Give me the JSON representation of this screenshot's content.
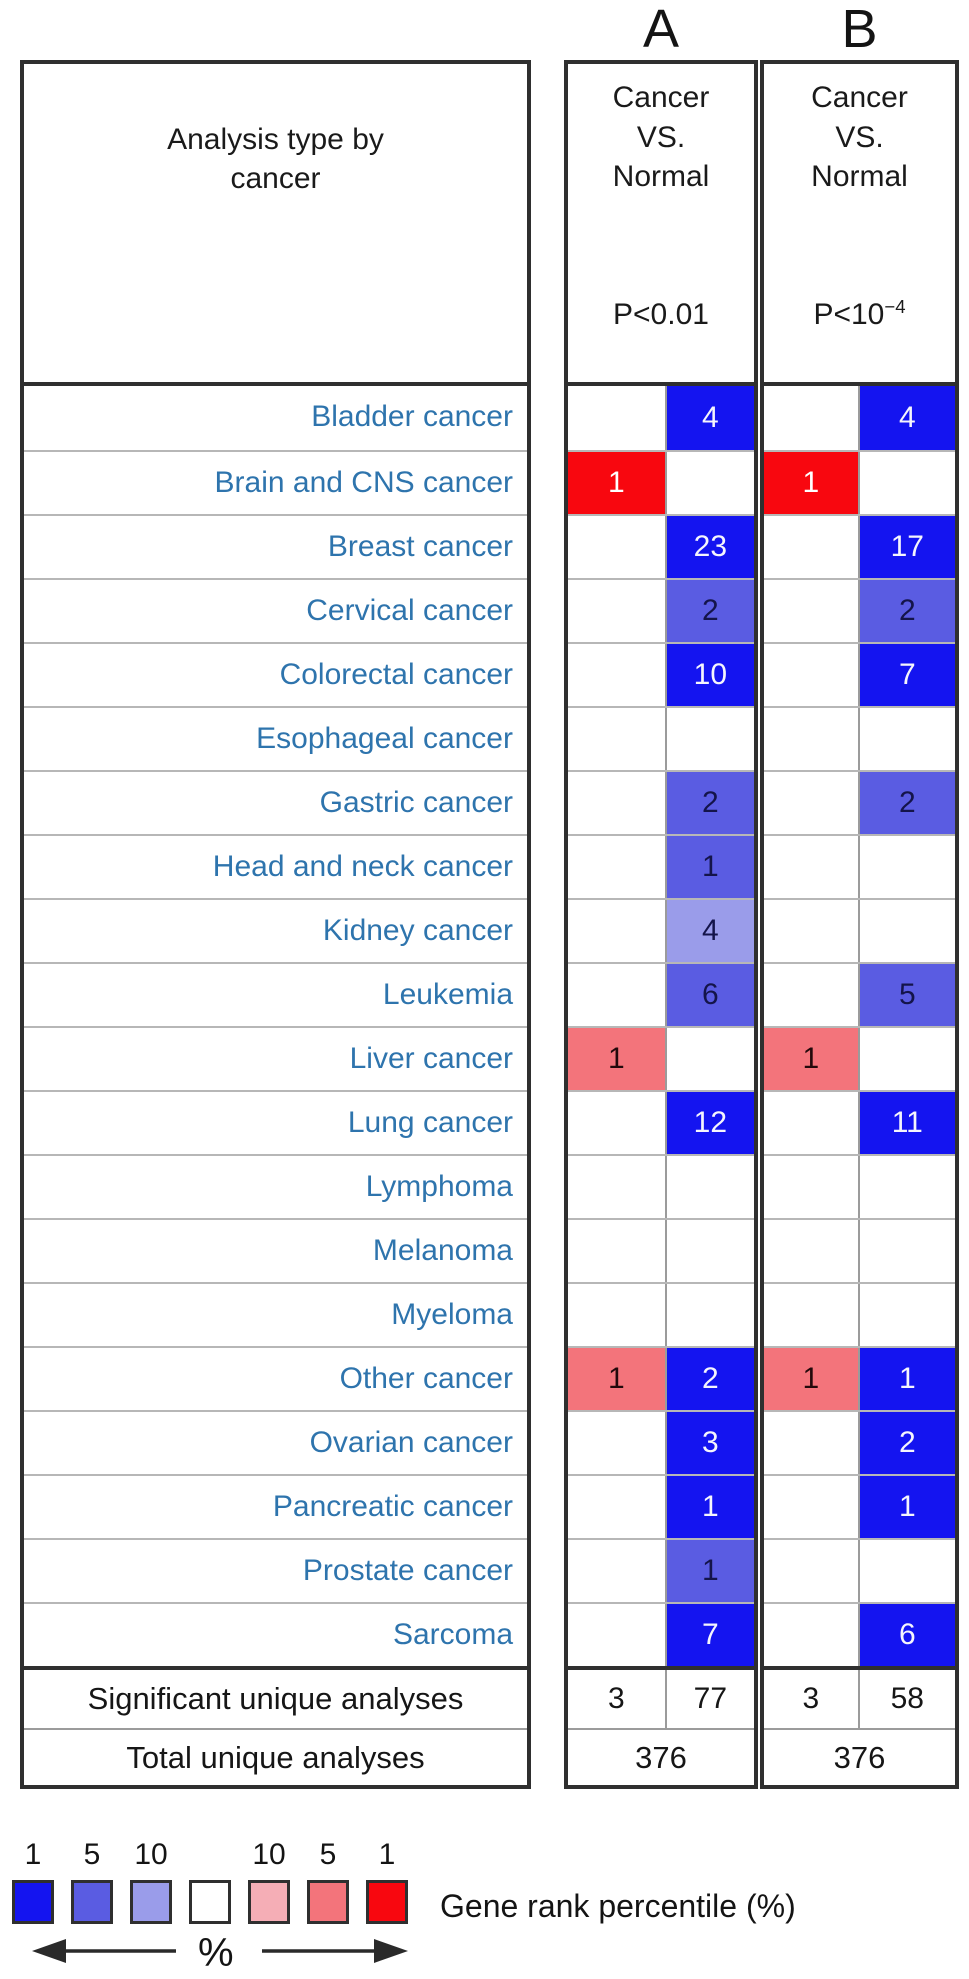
{
  "figure": {
    "panel_a_letter": "A",
    "panel_b_letter": "B",
    "left_header": "Analysis type by\ncancer",
    "a_header": "Cancer\nVS.\nNormal",
    "b_header": "Cancer\nVS.\nNormal",
    "a_pvalue": "P<0.01",
    "b_pvalue_base": "P<10",
    "b_pvalue_sup": "−4"
  },
  "chart_data": {
    "type": "heatmap",
    "title": "Analysis type by cancer",
    "columns": [
      {
        "id": "A",
        "comparison": "Cancer VS. Normal",
        "threshold": "P<0.01"
      },
      {
        "id": "B",
        "comparison": "Cancer VS. Normal",
        "threshold": "P<10^−4"
      }
    ],
    "cell_semantics": "down = red (left sub-column), up = blue (right sub-column); value = number of analyses; percentile_bin = gene rank percentile bucket (1, 5 or 10)",
    "rows": [
      {
        "label": "Bladder cancer",
        "a": {
          "down": null,
          "up": {
            "value": 4,
            "percentile_bin": 1
          }
        },
        "b": {
          "down": null,
          "up": {
            "value": 4,
            "percentile_bin": 1
          }
        }
      },
      {
        "label": "Brain and CNS cancer",
        "a": {
          "down": {
            "value": 1,
            "percentile_bin": 1
          },
          "up": null
        },
        "b": {
          "down": {
            "value": 1,
            "percentile_bin": 1
          },
          "up": null
        }
      },
      {
        "label": "Breast cancer",
        "a": {
          "down": null,
          "up": {
            "value": 23,
            "percentile_bin": 1
          }
        },
        "b": {
          "down": null,
          "up": {
            "value": 17,
            "percentile_bin": 1
          }
        }
      },
      {
        "label": "Cervical cancer",
        "a": {
          "down": null,
          "up": {
            "value": 2,
            "percentile_bin": 5
          }
        },
        "b": {
          "down": null,
          "up": {
            "value": 2,
            "percentile_bin": 5
          }
        }
      },
      {
        "label": "Colorectal cancer",
        "a": {
          "down": null,
          "up": {
            "value": 10,
            "percentile_bin": 1
          }
        },
        "b": {
          "down": null,
          "up": {
            "value": 7,
            "percentile_bin": 1
          }
        }
      },
      {
        "label": "Esophageal cancer",
        "a": null,
        "b": null
      },
      {
        "label": "Gastric cancer",
        "a": {
          "down": null,
          "up": {
            "value": 2,
            "percentile_bin": 5
          }
        },
        "b": {
          "down": null,
          "up": {
            "value": 2,
            "percentile_bin": 5
          }
        }
      },
      {
        "label": "Head and neck cancer",
        "a": {
          "down": null,
          "up": {
            "value": 1,
            "percentile_bin": 5
          }
        },
        "b": null
      },
      {
        "label": "Kidney cancer",
        "a": {
          "down": null,
          "up": {
            "value": 4,
            "percentile_bin": 10
          }
        },
        "b": null
      },
      {
        "label": "Leukemia",
        "a": {
          "down": null,
          "up": {
            "value": 6,
            "percentile_bin": 5
          }
        },
        "b": {
          "down": null,
          "up": {
            "value": 5,
            "percentile_bin": 5
          }
        }
      },
      {
        "label": "Liver cancer",
        "a": {
          "down": {
            "value": 1,
            "percentile_bin": 5
          },
          "up": null
        },
        "b": {
          "down": {
            "value": 1,
            "percentile_bin": 5
          },
          "up": null
        }
      },
      {
        "label": "Lung cancer",
        "a": {
          "down": null,
          "up": {
            "value": 12,
            "percentile_bin": 1
          }
        },
        "b": {
          "down": null,
          "up": {
            "value": 11,
            "percentile_bin": 1
          }
        }
      },
      {
        "label": "Lymphoma",
        "a": null,
        "b": null
      },
      {
        "label": "Melanoma",
        "a": null,
        "b": null
      },
      {
        "label": "Myeloma",
        "a": null,
        "b": null
      },
      {
        "label": "Other cancer",
        "a": {
          "down": {
            "value": 1,
            "percentile_bin": 5
          },
          "up": {
            "value": 2,
            "percentile_bin": 1
          }
        },
        "b": {
          "down": {
            "value": 1,
            "percentile_bin": 5
          },
          "up": {
            "value": 1,
            "percentile_bin": 1
          }
        }
      },
      {
        "label": "Ovarian cancer",
        "a": {
          "down": null,
          "up": {
            "value": 3,
            "percentile_bin": 1
          }
        },
        "b": {
          "down": null,
          "up": {
            "value": 2,
            "percentile_bin": 1
          }
        }
      },
      {
        "label": "Pancreatic cancer",
        "a": {
          "down": null,
          "up": {
            "value": 1,
            "percentile_bin": 1
          }
        },
        "b": {
          "down": null,
          "up": {
            "value": 1,
            "percentile_bin": 1
          }
        }
      },
      {
        "label": "Prostate cancer",
        "a": {
          "down": null,
          "up": {
            "value": 1,
            "percentile_bin": 5
          }
        },
        "b": null
      },
      {
        "label": "Sarcoma",
        "a": {
          "down": null,
          "up": {
            "value": 7,
            "percentile_bin": 1
          }
        },
        "b": {
          "down": null,
          "up": {
            "value": 6,
            "percentile_bin": 1
          }
        }
      }
    ],
    "summary": {
      "significant_label": "Significant unique analyses",
      "total_label": "Total unique analyses",
      "a": {
        "down": "3",
        "up": "77",
        "total": "376"
      },
      "b": {
        "down": "3",
        "up": "58",
        "total": "376"
      }
    },
    "legend": {
      "label": "Gene rank percentile (%)",
      "percent_symbol": "%",
      "bins": [
        {
          "num": "1",
          "color": "#1414f0"
        },
        {
          "num": "5",
          "color": "#5a5ce2"
        },
        {
          "num": "10",
          "color": "#9a9cea"
        },
        {
          "num": "",
          "color": "#ffffff"
        },
        {
          "num": "10",
          "color": "#f5aeb6"
        },
        {
          "num": "5",
          "color": "#f3747b"
        },
        {
          "num": "1",
          "color": "#f8070f"
        }
      ]
    },
    "colors": {
      "blue_1": "#1414f0",
      "blue_5": "#5a5ce2",
      "blue_10": "#9a9cea",
      "red_1": "#f8070f",
      "red_5": "#f3747b",
      "red_10": "#f5aeb6",
      "row_label_text": "#2e74ad",
      "border_thick": "#2f2f2f",
      "border_thin": "#b7b7b7"
    }
  }
}
